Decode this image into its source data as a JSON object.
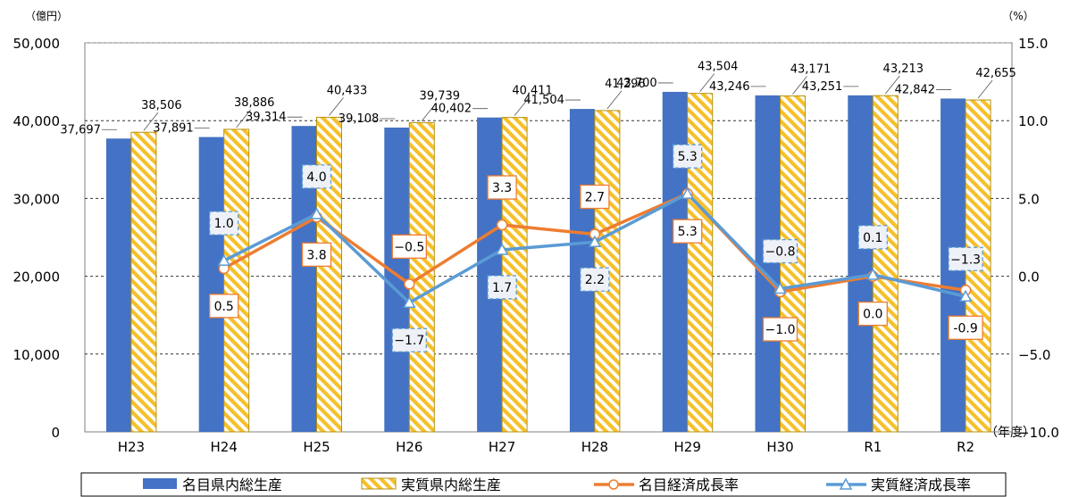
{
  "chart_data": {
    "type": "bar",
    "title": "",
    "y_left_unit": "（億円）",
    "y_right_unit": "（%）",
    "x_unit": "（年度）",
    "categories": [
      "H23",
      "H24",
      "H25",
      "H26",
      "H27",
      "H28",
      "H29",
      "H30",
      "R1",
      "R2"
    ],
    "y_left_lim": [
      0,
      50000
    ],
    "y_left_ticks": [
      "0",
      "10,000",
      "20,000",
      "30,000",
      "40,000",
      "50,000"
    ],
    "y_right_lim": [
      -10,
      15
    ],
    "y_right_ticks": [
      "-10.0",
      "-5.0",
      "0.0",
      "5.0",
      "10.0",
      "15.0"
    ],
    "grid": "dashed horizontal",
    "legend_position": "bottom",
    "series": [
      {
        "name": "名目県内総生産",
        "kind": "bar",
        "axis": "left",
        "color": "#4472C4",
        "values": [
          37697,
          37891,
          39314,
          39108,
          40402,
          41504,
          43700,
          43246,
          43251,
          42842
        ],
        "labels": [
          "37,697",
          "37,891",
          "39,314",
          "39,108",
          "40,402",
          "41,504",
          "43,700",
          "43,246",
          "43,251",
          "42,842"
        ]
      },
      {
        "name": "実質県内総生産",
        "kind": "bar",
        "axis": "left",
        "pattern": "diagonal-hatch",
        "color": "#F5C02A",
        "values": [
          38506,
          38886,
          40433,
          39739,
          40411,
          41296,
          43504,
          43171,
          43213,
          42655
        ],
        "labels": [
          "38,506",
          "38,886",
          "40,433",
          "39,739",
          "40,411",
          "41,296",
          "43,504",
          "43,171",
          "43,213",
          "42,655"
        ]
      },
      {
        "name": "名目経済成長率",
        "kind": "line",
        "axis": "right",
        "color": "#ED7D31",
        "marker": "circle",
        "values": [
          null,
          0.5,
          3.8,
          -0.5,
          3.3,
          2.7,
          5.3,
          -1.0,
          0.0,
          -0.9
        ],
        "labels": [
          "",
          "0.5",
          "3.8",
          "−0.5",
          "3.3",
          "2.7",
          "5.3",
          "−1.0",
          "0.0",
          "-0.9"
        ]
      },
      {
        "name": "実質経済成長率",
        "kind": "line",
        "axis": "right",
        "color": "#5B9BD5",
        "marker": "triangle",
        "values": [
          null,
          1.0,
          4.0,
          -1.7,
          1.7,
          2.2,
          5.3,
          -0.8,
          0.1,
          -1.3
        ],
        "labels": [
          "",
          "1.0",
          "4.0",
          "−1.7",
          "1.7",
          "2.2",
          "5.3",
          "−0.8",
          "0.1",
          "−1.3"
        ]
      }
    ]
  }
}
